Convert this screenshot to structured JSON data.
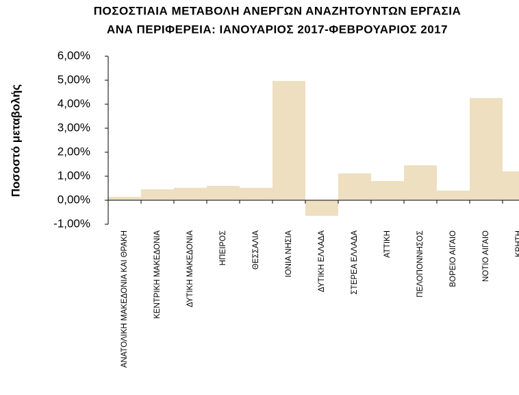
{
  "chart_data": {
    "type": "bar",
    "title": [
      "ΠΟΣΟΣΤΙΑΙΑ ΜΕΤΑΒΟΛΗ ΑΝΕΡΓΩΝ ΑΝΑΖΗΤΟΥΝΤΩΝ ΕΡΓΑΣΙΑ",
      "ΑΝΑ ΠΕΡΙΦΕΡΕΙΑ: ΙΑΝΟΥΑΡΙΟΣ 2017-ΦΕΒΡΟΥΑΡΙΟΣ 2017"
    ],
    "y_label": "Ποσοστό μεταβολής",
    "categories": [
      "ΑΝΑΤΟΛΙΚΗ ΜΑΚΕΔΟΝΙΑ ΚΑΙ ΘΡΑΚΗ",
      "ΚΕΝΤΡΙΚΗ ΜΑΚΕΔΟΝΙΑ",
      "ΔΥΤΙΚΗ ΜΑΚΕΔΟΝΙΑ",
      "ΗΠΕΙΡΟΣ",
      "ΘΕΣΣΑΛΙΑ",
      "ΙΟΝΙΑ ΝΗΣΙΑ",
      "ΔΥΤΙΚΗ ΕΛΛΑΔΑ",
      "ΣΤΕΡΕΑ ΕΛΛΑΔΑ",
      "ΑΤΤΙΚΗ",
      "ΠΕΛΟΠΟΝΝΗΣΟΣ",
      "ΒΟΡΕΙΟ ΑΙΓΑΙΟ",
      "ΝΟΤΙΟ ΑΙΓΑΙΟ",
      "ΚΡΗΤΗ"
    ],
    "values": [
      0.14,
      0.46,
      0.52,
      0.6,
      0.52,
      4.97,
      -0.65,
      1.12,
      0.8,
      1.46,
      0.4,
      4.26,
      1.2
    ],
    "color": "#eedfc0",
    "ylim": [
      -1,
      6
    ],
    "yticks": [
      {
        "value": -1,
        "label": "-1,00%"
      },
      {
        "value": 0,
        "label": "0,00%"
      },
      {
        "value": 1,
        "label": "1,00%"
      },
      {
        "value": 2,
        "label": "2,00%"
      },
      {
        "value": 3,
        "label": "3,00%"
      },
      {
        "value": 4,
        "label": "4,00%"
      },
      {
        "value": 5,
        "label": "5,00%"
      },
      {
        "value": 6,
        "label": "6,00%"
      }
    ],
    "grid": false
  }
}
